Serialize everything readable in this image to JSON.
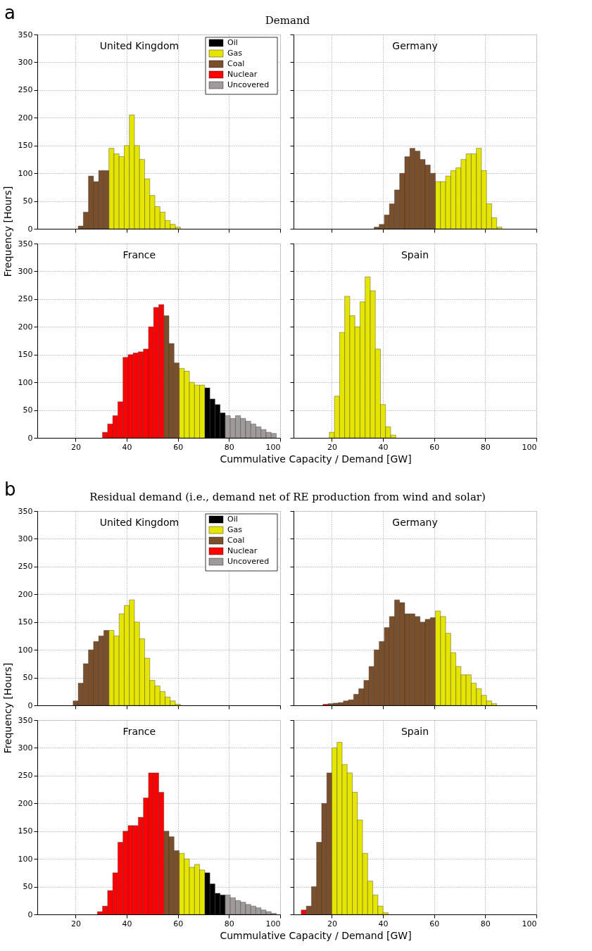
{
  "chart_data": [
    {
      "type": "histogram",
      "title": "United Kingdom",
      "annotations": [
        "a",
        "Demand"
      ],
      "ylabel": "Frequency [Hours]",
      "xlim": [
        5,
        100
      ],
      "ylim": [
        0,
        350
      ],
      "xticks": [
        20,
        40,
        60,
        80,
        100
      ],
      "yticks": [
        0,
        50,
        100,
        150,
        200,
        250,
        300,
        350
      ],
      "grid": true,
      "legend": "top right",
      "tick_labels": "y",
      "bins": [
        21,
        23,
        25,
        27,
        29,
        31,
        33,
        35,
        37,
        39,
        41,
        43,
        45,
        47,
        49,
        51,
        53,
        55,
        57,
        59,
        61
      ],
      "series": [
        {
          "color": "#e5e500",
          "values": [
            null,
            null,
            null,
            null,
            null,
            null,
            145,
            135,
            130,
            150,
            205,
            150,
            125,
            90,
            60,
            40,
            30,
            15,
            8,
            3
          ]
        },
        {
          "color": "#7a4f2c",
          "values": [
            5,
            30,
            95,
            85,
            105,
            105,
            null,
            null,
            null,
            null,
            null,
            null,
            null,
            null,
            null,
            null,
            null,
            null,
            null,
            null
          ]
        }
      ]
    },
    {
      "type": "histogram",
      "title": "Germany",
      "xlim": [
        5,
        100
      ],
      "ylim": [
        0,
        350
      ],
      "xticks": [
        20,
        40,
        60,
        80,
        100
      ],
      "yticks": [
        0,
        50,
        100,
        150,
        200,
        250,
        300,
        350
      ],
      "grid": true,
      "tick_labels": false,
      "bins": [
        36.5,
        38.5,
        40.5,
        42.5,
        44.5,
        46.5,
        48.5,
        50.5,
        52.5,
        54.5,
        56.5,
        58.5,
        60.5,
        62.5,
        64.5,
        66.5,
        68.5,
        70.5,
        72.5,
        74.5,
        76.5,
        78.5,
        80.5,
        82.5,
        84.5,
        86.5
      ],
      "series": [
        {
          "color": "#e5e500",
          "values": [
            null,
            null,
            null,
            null,
            null,
            null,
            null,
            null,
            null,
            null,
            null,
            null,
            85,
            85,
            95,
            105,
            110,
            125,
            135,
            135,
            145,
            105,
            45,
            20,
            3
          ]
        },
        {
          "color": "#7a4f2c",
          "values": [
            3,
            8,
            25,
            45,
            70,
            100,
            130,
            145,
            140,
            125,
            115,
            100,
            null,
            null,
            null,
            null,
            null,
            null,
            null,
            null,
            null,
            null,
            null,
            null,
            null
          ]
        }
      ]
    },
    {
      "type": "histogram",
      "title": "France",
      "xlabel": "Cummulative Capacity / Demand [GW]",
      "xlim": [
        5,
        100
      ],
      "ylim": [
        0,
        350
      ],
      "xticks": [
        20,
        40,
        60,
        80,
        100
      ],
      "yticks": [
        0,
        50,
        100,
        150,
        200,
        250,
        300,
        350
      ],
      "grid": true,
      "legend": "top right",
      "bins": [
        30.5,
        32.5,
        34.5,
        36.5,
        38.5,
        40.5,
        42.5,
        44.5,
        46.5,
        48.5,
        50.5,
        52.5,
        54.5,
        56.5,
        58.5,
        60.5,
        62.5,
        64.5,
        66.5,
        68.5,
        70.5,
        72.5,
        74.5,
        76.5,
        78.5,
        80.5,
        82.5,
        84.5,
        86.5,
        88.5,
        90.5,
        92.5,
        94.5,
        96.5,
        98.5
      ],
      "series": [
        {
          "name": "Oil",
          "color": "#000000",
          "values": [
            null,
            null,
            null,
            null,
            null,
            null,
            null,
            null,
            null,
            null,
            null,
            null,
            null,
            null,
            null,
            null,
            null,
            null,
            null,
            null,
            90,
            70,
            60,
            45,
            null,
            null,
            null,
            null,
            null,
            null,
            null,
            null,
            null,
            null
          ]
        },
        {
          "name": "Gas",
          "color": "#e5e500",
          "values": [
            null,
            null,
            null,
            null,
            null,
            null,
            null,
            null,
            null,
            null,
            null,
            null,
            null,
            null,
            null,
            125,
            120,
            100,
            95,
            95,
            null,
            null,
            null,
            null,
            null,
            null,
            null,
            null,
            null,
            null,
            null,
            null,
            null,
            null
          ]
        },
        {
          "name": "Coal",
          "color": "#7a4f2c",
          "values": [
            null,
            null,
            null,
            null,
            null,
            null,
            null,
            null,
            null,
            null,
            null,
            null,
            220,
            170,
            135,
            null,
            null,
            null,
            null,
            null,
            null,
            null,
            null,
            null,
            null,
            null,
            null,
            null,
            null,
            null,
            null,
            null,
            null,
            null
          ]
        },
        {
          "name": "Nuclear",
          "color": "#ff0000",
          "values": [
            10,
            25,
            40,
            65,
            145,
            150,
            153,
            155,
            160,
            200,
            235,
            240,
            null,
            null,
            null,
            null,
            null,
            null,
            null,
            null,
            null,
            null,
            null,
            null,
            null,
            null,
            null,
            null,
            null,
            null,
            null,
            null,
            null,
            null
          ]
        },
        {
          "name": "Uncovered",
          "color": "#a09a9a",
          "values": [
            null,
            null,
            null,
            null,
            null,
            null,
            null,
            null,
            null,
            null,
            null,
            null,
            null,
            null,
            null,
            null,
            null,
            null,
            null,
            null,
            null,
            null,
            null,
            null,
            40,
            35,
            40,
            35,
            30,
            25,
            20,
            15,
            10,
            8
          ]
        }
      ]
    },
    {
      "type": "histogram",
      "title": "Spain",
      "xlim": [
        5,
        100
      ],
      "ylim": [
        0,
        350
      ],
      "xticks": [
        20,
        40,
        60,
        80,
        100
      ],
      "yticks": [
        0,
        50,
        100,
        150,
        200,
        250,
        300,
        350
      ],
      "grid": true,
      "tick_labels": "x",
      "bins": [
        19,
        21,
        23,
        25,
        27,
        29,
        31,
        33,
        35,
        37,
        39,
        41,
        43,
        45
      ],
      "series": [
        {
          "color": "#e5e500",
          "values": [
            10,
            75,
            190,
            255,
            220,
            200,
            245,
            290,
            265,
            160,
            60,
            20,
            5
          ]
        }
      ]
    },
    {
      "type": "histogram",
      "title": "United Kingdom",
      "annotations": [
        "b",
        "Residual demand (i.e., demand net of RE production from wind and solar)"
      ],
      "ylabel": "Frequency [Hours]",
      "xlim": [
        5,
        100
      ],
      "ylim": [
        0,
        350
      ],
      "xticks": [
        20,
        40,
        60,
        80,
        100
      ],
      "yticks": [
        0,
        50,
        100,
        150,
        200,
        250,
        300,
        350
      ],
      "grid": true,
      "legend": "top right",
      "tick_labels": "y",
      "bins": [
        19,
        21,
        23,
        25,
        27,
        29,
        31,
        33,
        35,
        37,
        39,
        41,
        43,
        45,
        47,
        49,
        51,
        53,
        55,
        57,
        59,
        61
      ],
      "series": [
        {
          "color": "#e5e500",
          "values": [
            null,
            null,
            null,
            null,
            null,
            null,
            null,
            135,
            125,
            165,
            180,
            190,
            150,
            120,
            85,
            45,
            35,
            25,
            15,
            8,
            2
          ]
        },
        {
          "color": "#7a4f2c",
          "values": [
            8,
            40,
            75,
            100,
            115,
            125,
            135,
            null,
            null,
            null,
            null,
            null,
            null,
            null,
            null,
            null,
            null,
            null,
            null,
            null,
            null
          ]
        }
      ]
    },
    {
      "type": "histogram",
      "title": "Germany",
      "xlim": [
        5,
        100
      ],
      "ylim": [
        0,
        350
      ],
      "xticks": [
        20,
        40,
        60,
        80,
        100
      ],
      "yticks": [
        0,
        50,
        100,
        150,
        200,
        250,
        300,
        350
      ],
      "grid": true,
      "tick_labels": false,
      "bins": [
        16.5,
        18.5,
        20.5,
        22.5,
        24.5,
        26.5,
        28.5,
        30.5,
        32.5,
        34.5,
        36.5,
        38.5,
        40.5,
        42.5,
        44.5,
        46.5,
        48.5,
        50.5,
        52.5,
        54.5,
        56.5,
        58.5,
        60.5,
        62.5,
        64.5,
        66.5,
        68.5,
        70.5,
        72.5,
        74.5,
        76.5,
        78.5,
        80.5,
        82.5,
        84.5
      ],
      "series": [
        {
          "color": "#ff0000",
          "values": [
            2,
            null,
            null,
            null,
            null,
            null,
            null,
            null,
            null,
            null,
            null,
            null,
            null,
            null,
            null,
            null,
            null,
            null,
            null,
            null,
            null,
            null,
            null,
            null,
            null,
            null,
            null,
            null,
            null,
            null,
            null,
            null,
            null,
            null
          ]
        },
        {
          "color": "#7a4f2c",
          "values": [
            null,
            3,
            4,
            5,
            8,
            10,
            20,
            30,
            45,
            70,
            100,
            115,
            140,
            160,
            190,
            185,
            165,
            165,
            160,
            150,
            155,
            158,
            null,
            null,
            null,
            null,
            null,
            null,
            null,
            null,
            null,
            null,
            null,
            null
          ]
        },
        {
          "color": "#e5e500",
          "values": [
            null,
            null,
            null,
            null,
            null,
            null,
            null,
            null,
            null,
            null,
            null,
            null,
            null,
            null,
            null,
            null,
            null,
            null,
            null,
            null,
            null,
            null,
            170,
            160,
            130,
            95,
            70,
            55,
            55,
            40,
            30,
            18,
            8,
            3
          ]
        }
      ]
    },
    {
      "type": "histogram",
      "title": "France",
      "xlabel": "Cummulative Capacity / Demand [GW]",
      "xlim": [
        5,
        100
      ],
      "ylim": [
        0,
        350
      ],
      "xticks": [
        20,
        40,
        60,
        80,
        100
      ],
      "yticks": [
        0,
        50,
        100,
        150,
        200,
        250,
        300,
        350
      ],
      "grid": true,
      "legend": "top right",
      "bins": [
        28.5,
        30.5,
        32.5,
        34.5,
        36.5,
        38.5,
        40.5,
        42.5,
        44.5,
        46.5,
        48.5,
        50.5,
        52.5,
        54.5,
        56.5,
        58.5,
        60.5,
        62.5,
        64.5,
        66.5,
        68.5,
        70.5,
        72.5,
        74.5,
        76.5,
        78.5,
        80.5,
        82.5,
        84.5,
        86.5,
        88.5,
        90.5,
        92.5,
        94.5,
        96.5,
        98.5
      ],
      "series": [
        {
          "name": "Oil",
          "color": "#000000",
          "values": [
            null,
            null,
            null,
            null,
            null,
            null,
            null,
            null,
            null,
            null,
            null,
            null,
            null,
            null,
            null,
            null,
            null,
            null,
            null,
            null,
            null,
            75,
            55,
            38,
            35,
            null,
            null,
            null,
            null,
            null,
            null,
            null,
            null,
            null,
            null
          ]
        },
        {
          "name": "Gas",
          "color": "#e5e500",
          "values": [
            null,
            null,
            null,
            null,
            null,
            null,
            null,
            null,
            null,
            null,
            null,
            null,
            null,
            null,
            null,
            null,
            110,
            100,
            85,
            90,
            80,
            null,
            null,
            null,
            null,
            null,
            null,
            null,
            null,
            null,
            null,
            null,
            null,
            null,
            null
          ]
        },
        {
          "name": "Coal",
          "color": "#7a4f2c",
          "values": [
            null,
            null,
            null,
            null,
            null,
            null,
            null,
            null,
            null,
            null,
            null,
            null,
            null,
            150,
            140,
            115,
            null,
            null,
            null,
            null,
            null,
            null,
            null,
            null,
            null,
            null,
            null,
            null,
            null,
            null,
            null,
            null,
            null,
            null,
            null
          ]
        },
        {
          "name": "Nuclear",
          "color": "#ff0000",
          "values": [
            5,
            15,
            43,
            75,
            130,
            150,
            160,
            160,
            175,
            210,
            255,
            255,
            220,
            null,
            null,
            null,
            null,
            null,
            null,
            null,
            null,
            null,
            null,
            null,
            null,
            null,
            null,
            null,
            null,
            null,
            null,
            null,
            null,
            null,
            null
          ]
        },
        {
          "name": "Uncovered",
          "color": "#a09a9a",
          "values": [
            null,
            null,
            null,
            null,
            null,
            null,
            null,
            null,
            null,
            null,
            null,
            null,
            null,
            null,
            null,
            null,
            null,
            null,
            null,
            null,
            null,
            null,
            null,
            null,
            null,
            35,
            30,
            25,
            22,
            18,
            15,
            12,
            8,
            5,
            2
          ]
        }
      ]
    },
    {
      "type": "histogram",
      "title": "Spain",
      "xlim": [
        5,
        100
      ],
      "ylim": [
        0,
        350
      ],
      "xticks": [
        20,
        40,
        60,
        80,
        100
      ],
      "yticks": [
        0,
        50,
        100,
        150,
        200,
        250,
        300,
        350
      ],
      "grid": true,
      "tick_labels": "x",
      "bins": [
        8,
        10,
        12,
        14,
        16,
        18,
        20,
        22,
        24,
        26,
        28,
        30,
        32,
        34,
        36,
        38,
        40,
        42
      ],
      "series": [
        {
          "color": "#ff0000",
          "values": [
            8,
            null,
            null,
            null,
            null,
            null,
            null,
            null,
            null,
            null,
            null,
            null,
            null,
            null,
            null,
            null,
            null
          ]
        },
        {
          "color": "#7a4f2c",
          "values": [
            null,
            15,
            50,
            130,
            200,
            255,
            null,
            null,
            null,
            null,
            null,
            null,
            null,
            null,
            null,
            null,
            null
          ]
        },
        {
          "color": "#e5e500",
          "values": [
            null,
            null,
            null,
            null,
            null,
            null,
            300,
            310,
            270,
            255,
            220,
            170,
            110,
            60,
            35,
            15,
            3
          ]
        }
      ]
    }
  ]
}
